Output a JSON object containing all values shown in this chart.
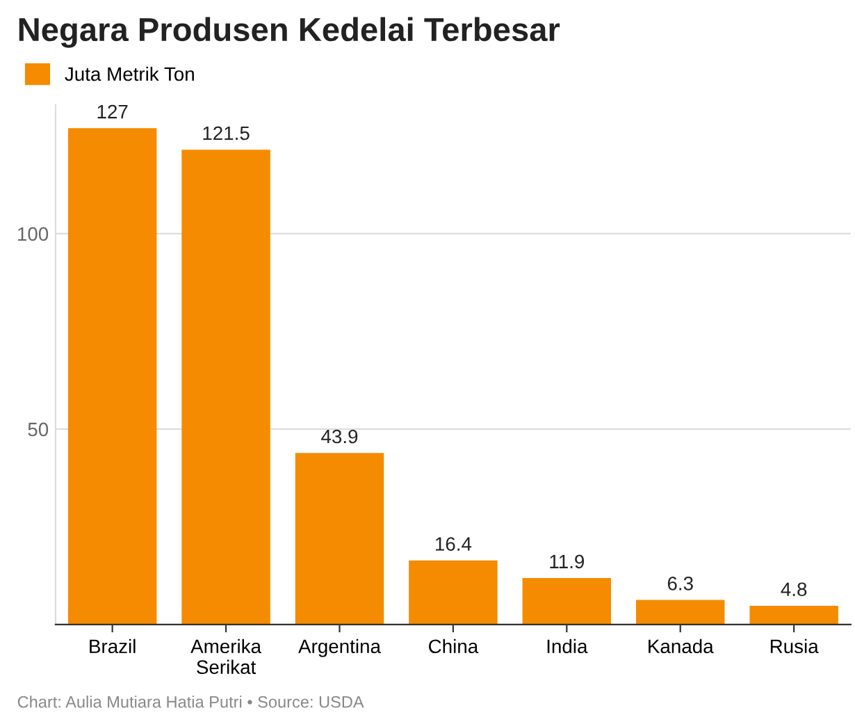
{
  "chart_data": {
    "type": "bar",
    "title": "Negara Produsen Kedelai Terbesar",
    "categories": [
      "Brazil",
      "Amerika Serikat",
      "Argentina",
      "China",
      "India",
      "Kanada",
      "Rusia"
    ],
    "series": [
      {
        "name": "Juta Metrik Ton",
        "color": "#f58b00",
        "values": [
          127,
          121.5,
          43.9,
          16.4,
          11.9,
          6.3,
          4.8
        ]
      }
    ],
    "ylim": [
      0,
      133
    ],
    "yticks": [
      {
        "value": 0,
        "label": null
      },
      50,
      100
    ],
    "grid": "y",
    "legend": "top left",
    "data_labels": true,
    "annotations": [
      "Chart: Aulia Mutiara Hatia Putri • Source: USDA"
    ]
  }
}
